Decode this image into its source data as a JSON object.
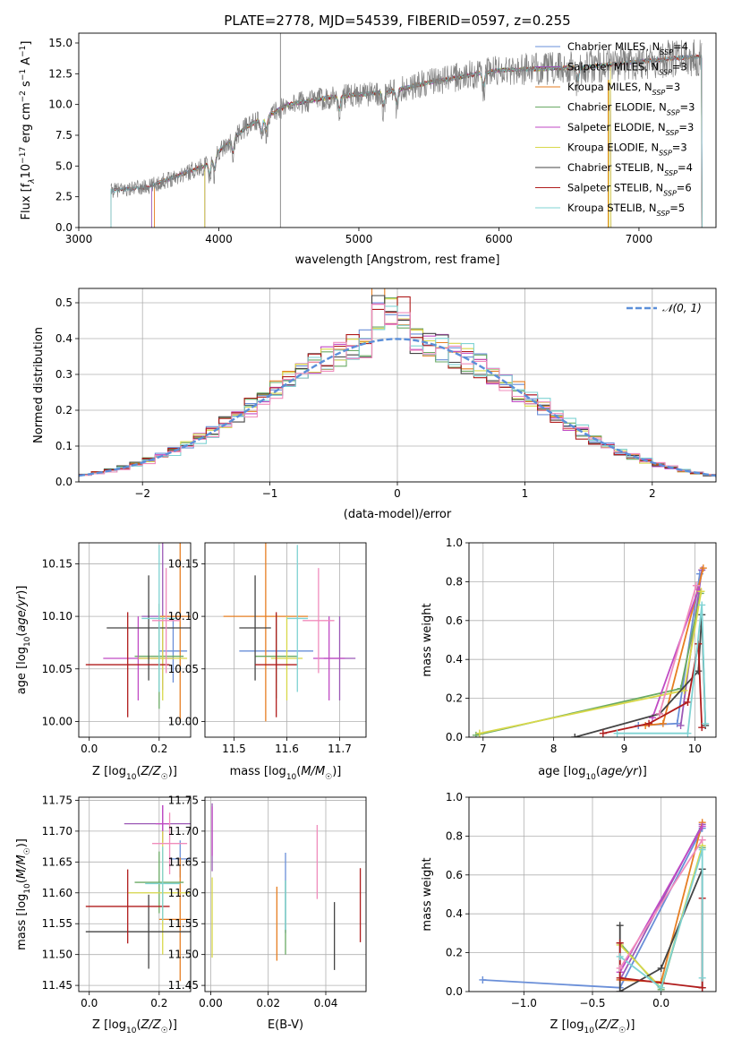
{
  "figure": {
    "title": "PLATE=2778, MJD=54539, FIBERID=0597, z=0.255"
  },
  "colors": {
    "chabrier_miles": "#6a8fd8",
    "salpeter_miles": "#9b59b6",
    "kroupa_miles": "#e67e22",
    "chabrier_elodie": "#6aaa64",
    "salpeter_elodie": "#c04ac4",
    "kroupa_elodie": "#d8d84a",
    "chabrier_stelib": "#444444",
    "salpeter_stelib": "#b01c1c",
    "kroupa_stelib": "#7fd3d3",
    "pink": "#f08cbc",
    "normal": "#5b8fd9"
  },
  "chart_data": [
    {
      "id": "spectrum",
      "type": "line",
      "title": "PLATE=2778, MJD=54539, FIBERID=0597, z=0.255",
      "xlabel": "wavelength [Angstrom, rest frame]",
      "ylabel": "Flux [fλ10⁻¹⁷ erg cm⁻² s⁻¹ A⁻¹]",
      "xlim": [
        3000,
        7550
      ],
      "ylim": [
        0,
        15.8
      ],
      "xticks": [
        "3000",
        "4000",
        "5000",
        "6000",
        "7000"
      ],
      "yticks": [
        "0.0",
        "2.5",
        "5.0",
        "7.5",
        "10.0",
        "12.5",
        "15.0"
      ],
      "grid": false,
      "legend_position": "top-right",
      "legend": [
        {
          "label": "Chabrier MILES, N",
          "sub": "SSP",
          "tail": "=4",
          "color_key": "chabrier_miles"
        },
        {
          "label": "Salpeter MILES, N",
          "sub": "SSP",
          "tail": "=3",
          "color_key": "salpeter_miles"
        },
        {
          "label": "Kroupa MILES, N",
          "sub": "SSP",
          "tail": "=3",
          "color_key": "kroupa_miles"
        },
        {
          "label": "Chabrier ELODIE, N",
          "sub": "SSP",
          "tail": "=3",
          "color_key": "chabrier_elodie"
        },
        {
          "label": "Salpeter ELODIE, N",
          "sub": "SSP",
          "tail": "=3",
          "color_key": "salpeter_elodie"
        },
        {
          "label": "Kroupa ELODIE, N",
          "sub": "SSP",
          "tail": "=3",
          "color_key": "kroupa_elodie"
        },
        {
          "label": "Chabrier STELIB, N",
          "sub": "SSP",
          "tail": "=4",
          "color_key": "chabrier_stelib"
        },
        {
          "label": "Salpeter STELIB, N",
          "sub": "SSP",
          "tail": "=6",
          "color_key": "salpeter_stelib"
        },
        {
          "label": "Kroupa STELIB, N",
          "sub": "SSP",
          "tail": "=5",
          "color_key": "kroupa_stelib"
        }
      ],
      "continuum": [
        [
          3230,
          3.0
        ],
        [
          3500,
          3.3
        ],
        [
          3700,
          4.2
        ],
        [
          3900,
          5.0
        ],
        [
          4000,
          6.2
        ],
        [
          4200,
          8.2
        ],
        [
          4500,
          10.0
        ],
        [
          4800,
          10.6
        ],
        [
          5000,
          10.8
        ],
        [
          5200,
          11.0
        ],
        [
          5500,
          11.8
        ],
        [
          5800,
          12.4
        ],
        [
          6000,
          12.8
        ],
        [
          6300,
          12.9
        ],
        [
          6600,
          13.0
        ],
        [
          7000,
          13.5
        ],
        [
          7300,
          13.8
        ],
        [
          7450,
          13.9
        ]
      ]
    },
    {
      "id": "residuals",
      "type": "line",
      "xlabel": "(data-model)/error",
      "ylabel": "Normed distribution",
      "xlim": [
        -2.5,
        2.5
      ],
      "ylim": [
        0,
        0.54
      ],
      "xticks": [
        "−2",
        "−1",
        "0",
        "1",
        "2"
      ],
      "yticks": [
        "0.0",
        "0.1",
        "0.2",
        "0.3",
        "0.4",
        "0.5"
      ],
      "grid": true,
      "legend_position": "top-right",
      "legend_label": "N(0, 1)",
      "bin_width": 0.1,
      "series_color_keys": [
        "chabrier_miles",
        "kroupa_miles",
        "chabrier_elodie",
        "salpeter_elodie",
        "kroupa_elodie",
        "chabrier_stelib",
        "salpeter_stelib",
        "kroupa_stelib",
        "pink"
      ]
    },
    {
      "id": "age_vs_Z",
      "type": "scatter",
      "xlabel": "Z [log10(Z/Z☉)]",
      "ylabel": "age  [log10(age/yr)]",
      "xlim": [
        -0.03,
        0.29
      ],
      "ylim": [
        9.985,
        10.17
      ],
      "xticks": [
        "0.0",
        "0.2"
      ],
      "yticks": [
        "10.00",
        "10.05",
        "10.10",
        "10.15"
      ],
      "grid": true,
      "points": [
        {
          "x": 0.24,
          "y": 10.067,
          "ex": 0.04,
          "ey": 0.03,
          "c": "chabrier_miles"
        },
        {
          "x": 0.21,
          "y": 10.1,
          "ex": 0.06,
          "ey": 0.07,
          "c": "salpeter_miles"
        },
        {
          "x": 0.26,
          "y": 10.1,
          "ex": 0.06,
          "ey": 0.1,
          "c": "kroupa_miles"
        },
        {
          "x": 0.2,
          "y": 10.062,
          "ex": 0.07,
          "ey": 0.05,
          "c": "chabrier_elodie"
        },
        {
          "x": 0.14,
          "y": 10.06,
          "ex": 0.1,
          "ey": 0.04,
          "c": "salpeter_elodie"
        },
        {
          "x": 0.21,
          "y": 10.06,
          "ex": 0.07,
          "ey": 0.04,
          "c": "kroupa_elodie"
        },
        {
          "x": 0.17,
          "y": 10.089,
          "ex": 0.12,
          "ey": 0.05,
          "c": "chabrier_stelib"
        },
        {
          "x": 0.11,
          "y": 10.054,
          "ex": 0.12,
          "ey": 0.05,
          "c": "salpeter_stelib"
        },
        {
          "x": 0.2,
          "y": 10.098,
          "ex": 0.05,
          "ey": 0.07,
          "c": "kroupa_stelib"
        },
        {
          "x": 0.22,
          "y": 10.096,
          "ex": 0.04,
          "ey": 0.05,
          "c": "pink"
        }
      ]
    },
    {
      "id": "age_vs_mass",
      "type": "scatter",
      "xlabel": "mass [log10(M/M☉)]",
      "ylabel": "",
      "xlim": [
        11.445,
        11.75
      ],
      "ylim": [
        9.985,
        10.17
      ],
      "xticks": [
        "11.5",
        "11.6",
        "11.7"
      ],
      "yticks": [
        "10.00",
        "10.05",
        "10.10",
        "10.15"
      ],
      "grid": true,
      "points": [
        {
          "x": 11.58,
          "y": 10.067,
          "ex": 0.07,
          "ey": 0.03,
          "c": "chabrier_miles"
        },
        {
          "x": 11.7,
          "y": 10.06,
          "ex": 0.03,
          "ey": 0.04,
          "c": "salpeter_miles"
        },
        {
          "x": 11.56,
          "y": 10.1,
          "ex": 0.08,
          "ey": 0.1,
          "c": "kroupa_miles"
        },
        {
          "x": 11.58,
          "y": 10.062,
          "ex": 0.04,
          "ey": 0.04,
          "c": "chabrier_elodie"
        },
        {
          "x": 11.68,
          "y": 10.06,
          "ex": 0.03,
          "ey": 0.04,
          "c": "salpeter_elodie"
        },
        {
          "x": 11.6,
          "y": 10.06,
          "ex": 0.03,
          "ey": 0.04,
          "c": "kroupa_elodie"
        },
        {
          "x": 11.54,
          "y": 10.089,
          "ex": 0.03,
          "ey": 0.05,
          "c": "chabrier_stelib"
        },
        {
          "x": 11.58,
          "y": 10.054,
          "ex": 0.04,
          "ey": 0.05,
          "c": "salpeter_stelib"
        },
        {
          "x": 11.62,
          "y": 10.098,
          "ex": 0.02,
          "ey": 0.07,
          "c": "kroupa_stelib"
        },
        {
          "x": 11.66,
          "y": 10.096,
          "ex": 0.03,
          "ey": 0.05,
          "c": "pink"
        }
      ]
    },
    {
      "id": "weight_vs_age",
      "type": "line",
      "xlabel": "age  [log10(age/yr)]",
      "ylabel": "mass weight",
      "xlim": [
        6.8,
        10.3
      ],
      "ylim": [
        0,
        1.0
      ],
      "xticks": [
        "7",
        "8",
        "9",
        "10"
      ],
      "yticks": [
        "0.0",
        "0.2",
        "0.4",
        "0.6",
        "0.8",
        "1.0"
      ],
      "grid": true,
      "series": [
        {
          "c": "chabrier_miles",
          "pts": [
            [
              9.2,
              0.06
            ],
            [
              9.75,
              0.07
            ],
            [
              10.07,
              0.84
            ]
          ]
        },
        {
          "c": "salpeter_miles",
          "pts": [
            [
              9.8,
              0.06
            ],
            [
              10.1,
              0.86
            ]
          ]
        },
        {
          "c": "kroupa_miles",
          "pts": [
            [
              9.3,
              0.06
            ],
            [
              9.55,
              0.07
            ],
            [
              10.12,
              0.87
            ]
          ]
        },
        {
          "c": "chabrier_elodie",
          "pts": [
            [
              6.9,
              0.01
            ],
            [
              9.8,
              0.25
            ],
            [
              10.08,
              0.74
            ]
          ]
        },
        {
          "c": "salpeter_elodie",
          "pts": [
            [
              9.4,
              0.1
            ],
            [
              10.05,
              0.76
            ]
          ]
        },
        {
          "c": "kroupa_elodie",
          "pts": [
            [
              6.95,
              0.02
            ],
            [
              9.85,
              0.24
            ],
            [
              10.09,
              0.75
            ]
          ]
        },
        {
          "c": "chabrier_stelib",
          "pts": [
            [
              8.3,
              0.0
            ],
            [
              9.5,
              0.12
            ],
            [
              10.05,
              0.34
            ],
            [
              10.1,
              0.63
            ],
            [
              10.15,
              0.06
            ]
          ]
        },
        {
          "c": "salpeter_stelib",
          "pts": [
            [
              8.7,
              0.02
            ],
            [
              9.35,
              0.07
            ],
            [
              9.9,
              0.18
            ],
            [
              10.05,
              0.48
            ],
            [
              10.1,
              0.05
            ]
          ]
        },
        {
          "c": "kroupa_stelib",
          "pts": [
            [
              8.9,
              0.02
            ],
            [
              9.9,
              0.02
            ],
            [
              10.1,
              0.68
            ],
            [
              10.15,
              0.07
            ]
          ]
        },
        {
          "c": "pink",
          "pts": [
            [
              9.5,
              0.12
            ],
            [
              10.02,
              0.78
            ]
          ]
        }
      ]
    },
    {
      "id": "mass_vs_Z",
      "type": "scatter",
      "xlabel": "Z [log10(Z/Z☉)]",
      "ylabel": "mass [log10(M/M☉)]",
      "xlim": [
        -0.03,
        0.29
      ],
      "ylim": [
        11.44,
        11.755
      ],
      "xticks": [
        "0.0",
        "0.2"
      ],
      "yticks": [
        "11.45",
        "11.50",
        "11.55",
        "11.60",
        "11.65",
        "11.70",
        "11.75"
      ],
      "grid": true,
      "points": [
        {
          "x": 0.26,
          "y": 11.655,
          "ex": 0.03,
          "ey": 0.03,
          "c": "chabrier_miles"
        },
        {
          "x": 0.21,
          "y": 11.712,
          "ex": 0.11,
          "ey": 0.03,
          "c": "salpeter_miles"
        },
        {
          "x": 0.26,
          "y": 11.557,
          "ex": 0.06,
          "ey": 0.1,
          "c": "kroupa_miles"
        },
        {
          "x": 0.2,
          "y": 11.617,
          "ex": 0.07,
          "ey": 0.05,
          "c": "chabrier_elodie"
        },
        {
          "x": 0.21,
          "y": 11.712,
          "ex": 0.02,
          "ey": 0.03,
          "c": "salpeter_elodie"
        },
        {
          "x": 0.21,
          "y": 11.6,
          "ex": 0.1,
          "ey": 0.1,
          "c": "kroupa_elodie"
        },
        {
          "x": 0.17,
          "y": 11.537,
          "ex": 0.18,
          "ey": 0.06,
          "c": "chabrier_stelib"
        },
        {
          "x": 0.11,
          "y": 11.578,
          "ex": 0.12,
          "ey": 0.06,
          "c": "salpeter_stelib"
        },
        {
          "x": 0.21,
          "y": 11.615,
          "ex": 0.05,
          "ey": 0.06,
          "c": "kroupa_stelib"
        },
        {
          "x": 0.23,
          "y": 11.68,
          "ex": 0.05,
          "ey": 0.05,
          "c": "pink"
        }
      ]
    },
    {
      "id": "mass_vs_ebv",
      "type": "scatter",
      "xlabel": "E(B-V)",
      "ylabel": "",
      "xlim": [
        -0.002,
        0.054
      ],
      "ylim": [
        11.44,
        11.755
      ],
      "xticks": [
        "0.00",
        "0.02",
        "0.04"
      ],
      "yticks": [
        "11.45",
        "11.50",
        "11.55",
        "11.60",
        "11.65",
        "11.70",
        "11.75"
      ],
      "grid": true,
      "points": [
        {
          "x": 0.026,
          "y": 11.6,
          "ey": 0.065,
          "c": "chabrier_miles"
        },
        {
          "x": 0.0005,
          "y": 11.69,
          "ey": 0.055,
          "c": "salpeter_miles"
        },
        {
          "x": 0.023,
          "y": 11.55,
          "ey": 0.06,
          "c": "kroupa_miles"
        },
        {
          "x": 0.026,
          "y": 11.56,
          "ey": 0.06,
          "c": "chabrier_elodie"
        },
        {
          "x": 0.0005,
          "y": 11.7,
          "ey": 0.04,
          "c": "salpeter_elodie"
        },
        {
          "x": 0.0005,
          "y": 11.56,
          "ey": 0.065,
          "c": "kroupa_elodie"
        },
        {
          "x": 0.043,
          "y": 11.53,
          "ey": 0.055,
          "c": "chabrier_stelib"
        },
        {
          "x": 0.052,
          "y": 11.58,
          "ey": 0.06,
          "c": "salpeter_stelib"
        },
        {
          "x": 0.026,
          "y": 11.58,
          "ey": 0.04,
          "c": "kroupa_stelib"
        },
        {
          "x": 0.037,
          "y": 11.65,
          "ey": 0.06,
          "c": "pink"
        }
      ]
    },
    {
      "id": "weight_vs_Z",
      "type": "line",
      "xlabel": "Z [log10(Z/Z☉)]",
      "ylabel": "mass weight",
      "xlim": [
        -1.4,
        0.4
      ],
      "ylim": [
        0,
        1.0
      ],
      "xticks": [
        "−1.0",
        "−0.5",
        "0.0"
      ],
      "yticks": [
        "0.0",
        "0.2",
        "0.4",
        "0.6",
        "0.8",
        "1.0"
      ],
      "grid": true,
      "series": [
        {
          "c": "chabrier_miles",
          "pts": [
            [
              -1.3,
              0.06
            ],
            [
              -0.3,
              0.02
            ],
            [
              0.3,
              0.84
            ]
          ]
        },
        {
          "c": "salpeter_miles",
          "pts": [
            [
              -0.3,
              0.06
            ],
            [
              0.3,
              0.86
            ]
          ]
        },
        {
          "c": "kroupa_miles",
          "pts": [
            [
              -0.3,
              0.06
            ],
            [
              0.0,
              0.05
            ],
            [
              0.3,
              0.87
            ]
          ]
        },
        {
          "c": "chabrier_elodie",
          "pts": [
            [
              -0.3,
              0.25
            ],
            [
              0.0,
              0.01
            ],
            [
              0.3,
              0.74
            ]
          ]
        },
        {
          "c": "salpeter_elodie",
          "pts": [
            [
              -0.3,
              0.1
            ],
            [
              0.3,
              0.85
            ]
          ]
        },
        {
          "c": "kroupa_elodie",
          "pts": [
            [
              -0.3,
              0.24
            ],
            [
              0.0,
              0.02
            ],
            [
              0.3,
              0.75
            ]
          ]
        },
        {
          "c": "chabrier_stelib",
          "pts": [
            [
              -0.3,
              0.34
            ],
            [
              -0.3,
              0.0
            ],
            [
              0.0,
              0.12
            ],
            [
              0.3,
              0.63
            ],
            [
              0.3,
              0.02
            ]
          ]
        },
        {
          "c": "salpeter_stelib",
          "pts": [
            [
              -0.3,
              0.25
            ],
            [
              -0.3,
              0.07
            ],
            [
              0.3,
              0.02
            ],
            [
              0.3,
              0.48
            ]
          ]
        },
        {
          "c": "kroupa_stelib",
          "pts": [
            [
              -0.3,
              0.18
            ],
            [
              0.0,
              0.02
            ],
            [
              0.3,
              0.73
            ],
            [
              0.3,
              0.07
            ]
          ]
        },
        {
          "c": "pink",
          "pts": [
            [
              -0.3,
              0.12
            ],
            [
              0.3,
              0.78
            ]
          ]
        }
      ]
    }
  ]
}
